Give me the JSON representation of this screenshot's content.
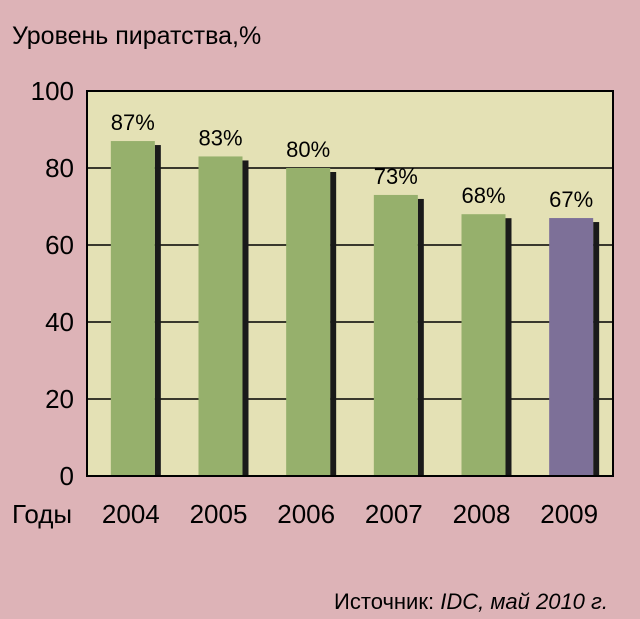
{
  "chart_data": {
    "type": "bar",
    "title": "Уровень пиратства,%",
    "xlabel": "Годы",
    "ylabel": "",
    "ylim": [
      0,
      100
    ],
    "yticks": [
      0,
      20,
      40,
      60,
      80,
      100
    ],
    "grid": true,
    "categories": [
      "2004",
      "2005",
      "2006",
      "2007",
      "2008",
      "2009"
    ],
    "values": [
      87,
      83,
      80,
      73,
      68,
      67
    ],
    "data_labels": [
      "87%",
      "83%",
      "80%",
      "73%",
      "68%",
      "67%"
    ],
    "colors": {
      "bar": "#96b06c",
      "bar_highlight": "#7d7098",
      "bar_shadow": "#1a1a1a",
      "plot_background": "#e4e1b5",
      "page_background": "#ddb3b7"
    },
    "highlight_index": 5
  },
  "source": {
    "prefix": "Источник: ",
    "name": "IDC, май 2010 г."
  }
}
